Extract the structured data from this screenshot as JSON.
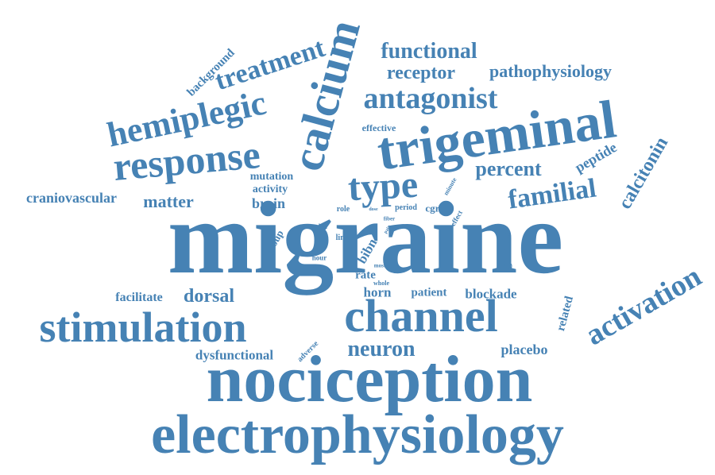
{
  "word_cloud": {
    "color": "#4682b4",
    "words": {
      "migraine": "migraine",
      "nociception": "nociception",
      "electrophysiology": "electrophysiology",
      "trigeminal": "trigeminal",
      "channel": "channel",
      "stimulation": "stimulation",
      "calcium": "calcium",
      "response": "response",
      "hemiplegic": "hemiplegic",
      "activation": "activation",
      "type": "type",
      "antagonist": "antagonist",
      "treatment": "treatment",
      "familial": "familial",
      "neuron": "neuron",
      "percent": "percent",
      "calcitonin": "calcitonin",
      "functional": "functional",
      "receptor": "receptor",
      "pathophysiology": "pathophysiology",
      "dorsal": "dorsal",
      "matter": "matter",
      "craniovascular": "craniovascular",
      "background": "background",
      "brain": "brain",
      "mutation": "mutation",
      "activity": "activity",
      "effective": "effective",
      "peptide": "peptide",
      "facilitate": "facilitate",
      "dysfunctional": "dysfunctional",
      "horn": "horn",
      "patient": "patient",
      "blockade": "blockade",
      "placebo": "placebo",
      "related": "related",
      "stem": "stem",
      "rate": "rate",
      "bibn": "bibn",
      "grey": "grey",
      "group": "group",
      "genetic": "genetic",
      "cgrp": "cgrp",
      "period": "period",
      "role": "role",
      "link": "link",
      "hour": "hour",
      "most": "most",
      "whole": "whole",
      "fiber": "fiber",
      "pain": "pain",
      "effect": "effect",
      "minute": "minute",
      "dose": "dose",
      "adverse": "adverse"
    }
  }
}
